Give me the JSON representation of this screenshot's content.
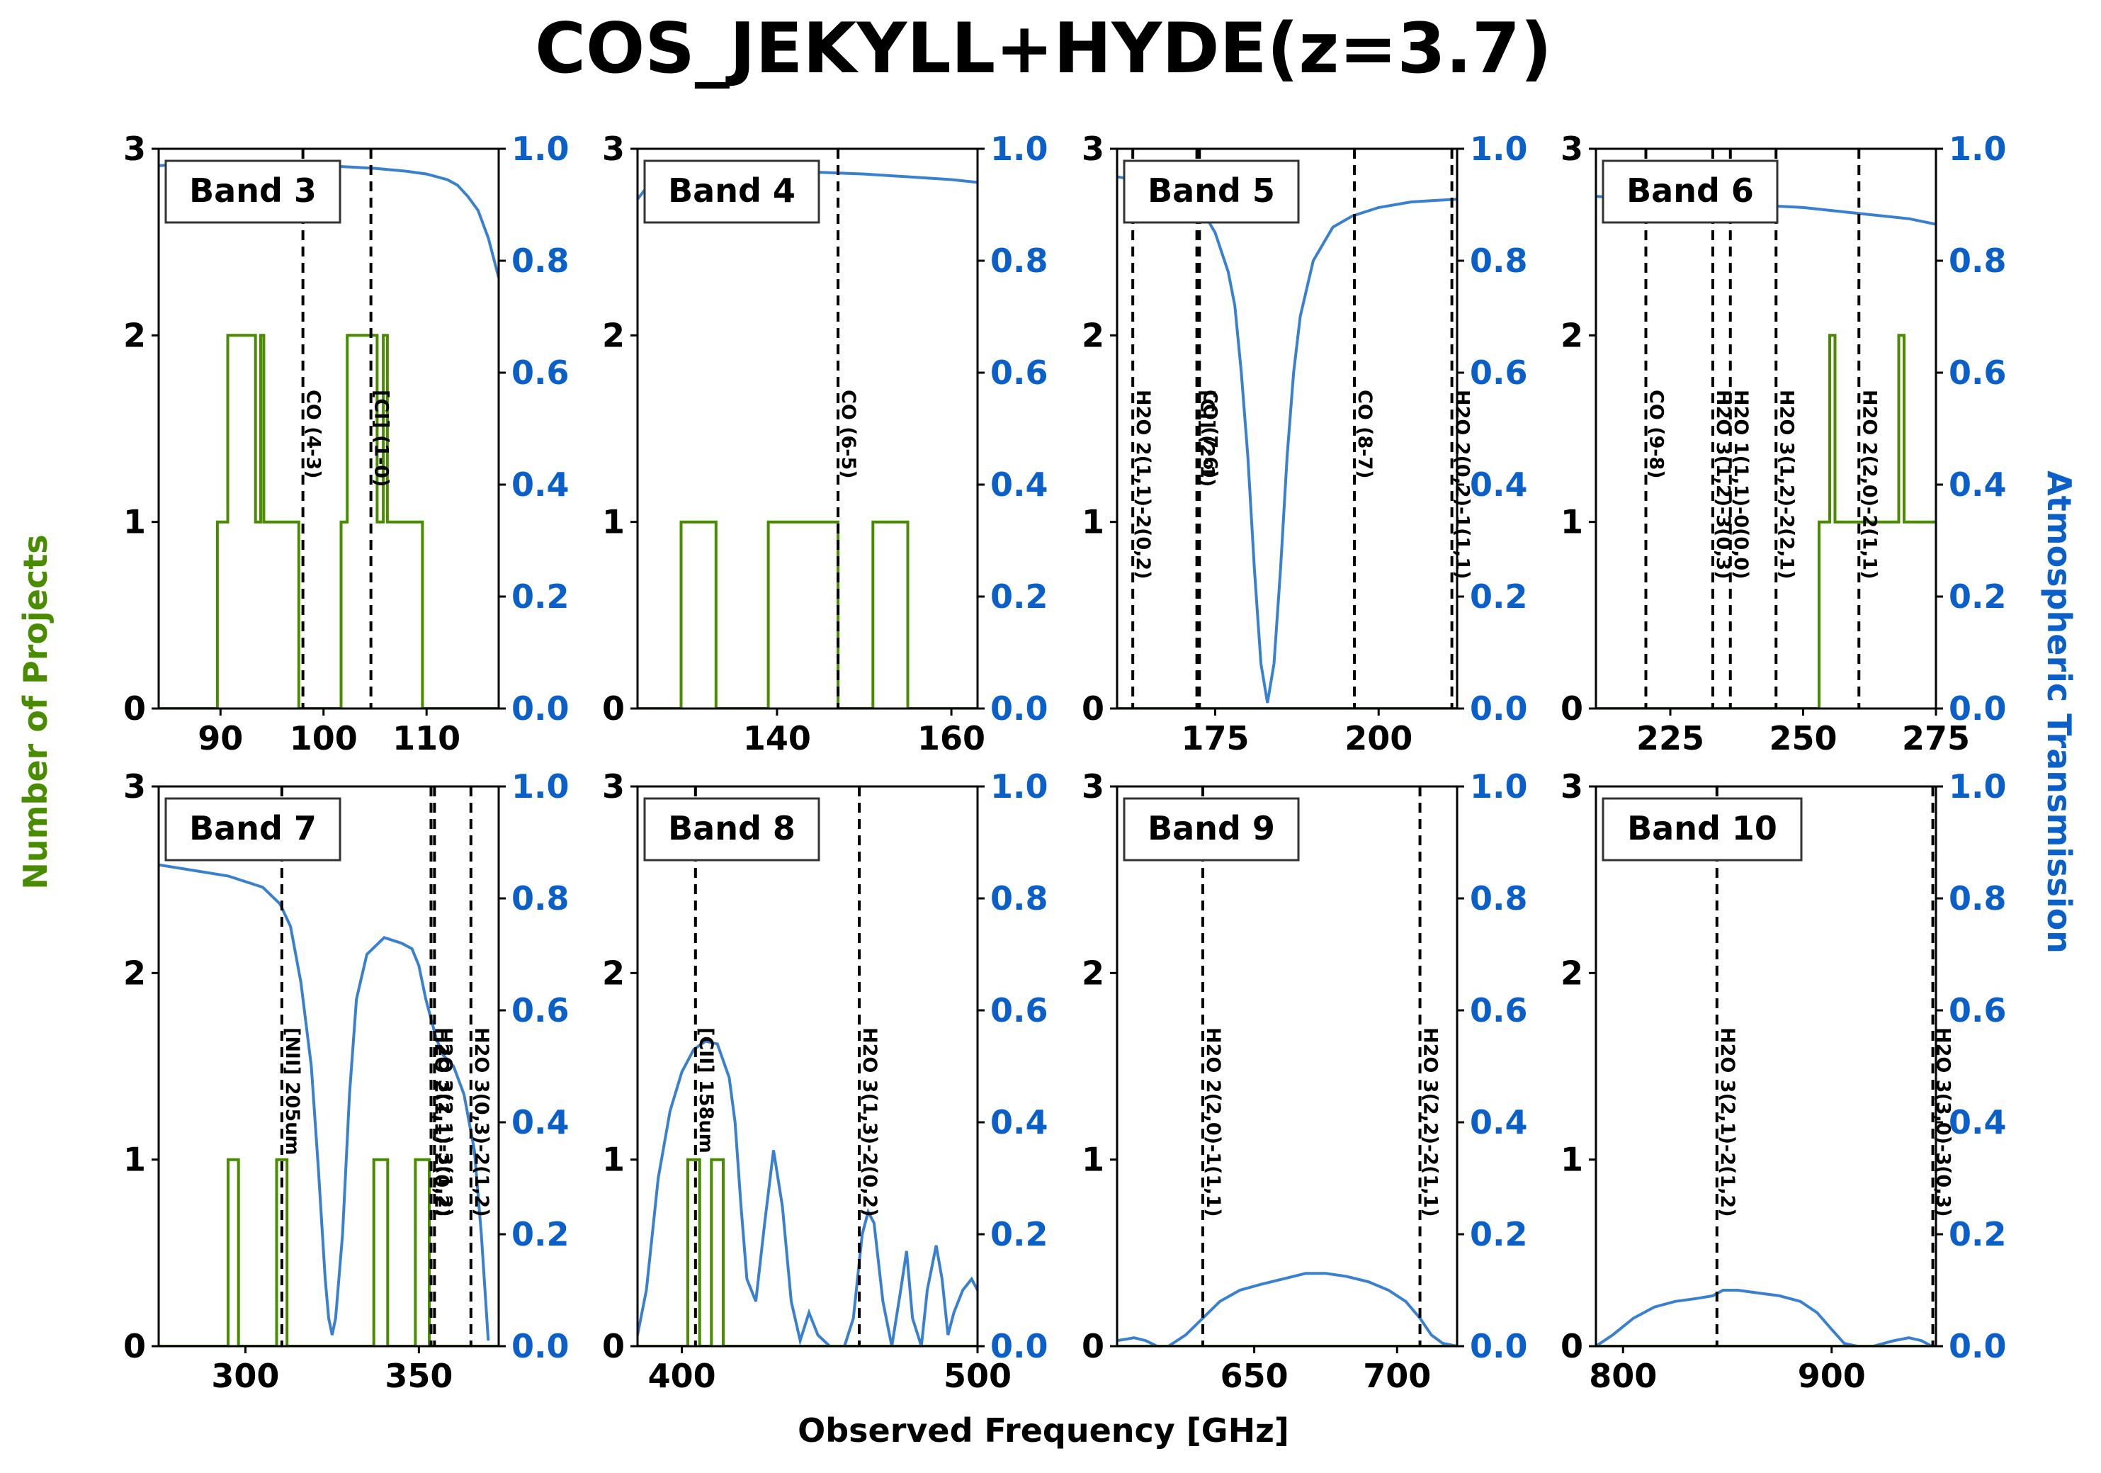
{
  "figure": {
    "title": "COS_JEKYLL+HYDE(z=3.7)",
    "xlabel": "Observed Frequency [GHz]",
    "ylabel_left": "Number of Projects",
    "ylabel_right": "Atmospheric Transmission",
    "colors": {
      "projects": "#4a8c00",
      "transmission": "#3a80d0",
      "right_axis_text": "#0a5fc8",
      "lines": "#000000"
    }
  },
  "chart_data": [
    {
      "type": "line",
      "band": "Band 3",
      "xlim": [
        84,
        117
      ],
      "xticks": [
        90,
        100,
        110
      ],
      "ylim_left": [
        0,
        3
      ],
      "yticks_left": [
        0,
        1,
        2,
        3
      ],
      "ylim_right": [
        0,
        1.0
      ],
      "yticks_right": [
        "0.0",
        "0.2",
        "0.4",
        "0.6",
        "0.8",
        "1.0"
      ],
      "projects": {
        "x": [
          84,
          89.7,
          89.7,
          90.7,
          90.7,
          93.4,
          93.4,
          93.9,
          93.9,
          94.2,
          94.2,
          94.6,
          94.6,
          97.6,
          97.6,
          101.7,
          101.7,
          102.3,
          102.3,
          105.2,
          105.2,
          105.8,
          105.8,
          106.2,
          106.2,
          109.6,
          109.6,
          117
        ],
        "y": [
          0,
          0,
          1,
          1,
          2,
          2,
          1,
          1,
          2,
          2,
          1,
          1,
          1,
          1,
          0,
          0,
          1,
          1,
          2,
          2,
          1,
          1,
          2,
          2,
          1,
          1,
          0,
          0
        ]
      },
      "transmission": {
        "x": [
          84,
          90,
          95,
          100,
          105,
          108,
          110,
          112,
          113,
          114,
          115,
          116,
          117
        ],
        "y": [
          0.97,
          0.975,
          0.975,
          0.97,
          0.965,
          0.96,
          0.955,
          0.945,
          0.935,
          0.915,
          0.89,
          0.84,
          0.77
        ]
      },
      "lines": [
        {
          "x": 98.0,
          "label": "CO (4-3)"
        },
        {
          "x": 104.6,
          "label": "[CI] (1-0)"
        }
      ]
    },
    {
      "type": "line",
      "band": "Band 4",
      "xlim": [
        124,
        163
      ],
      "xticks": [
        140,
        160
      ],
      "ylim_left": [
        0,
        3
      ],
      "yticks_left": [
        0,
        1,
        2,
        3
      ],
      "ylim_right": [
        0,
        1.0
      ],
      "yticks_right": [
        "0.0",
        "0.2",
        "0.4",
        "0.6",
        "0.8",
        "1.0"
      ],
      "projects": {
        "x": [
          124,
          129,
          129,
          133,
          133,
          139,
          139,
          147,
          147,
          151,
          151,
          155,
          155,
          163
        ],
        "y": [
          0,
          0,
          1,
          1,
          0,
          0,
          1,
          1,
          0,
          0,
          1,
          1,
          0,
          0
        ]
      },
      "transmission": {
        "x": [
          124,
          125,
          127,
          130,
          135,
          140,
          145,
          150,
          155,
          160,
          163
        ],
        "y": [
          0.91,
          0.93,
          0.945,
          0.95,
          0.955,
          0.958,
          0.958,
          0.955,
          0.95,
          0.945,
          0.94
        ]
      },
      "lines": [
        {
          "x": 147.0,
          "label": "CO (6-5)"
        }
      ]
    },
    {
      "type": "line",
      "band": "Band 5",
      "xlim": [
        160,
        212
      ],
      "xticks": [
        175,
        200
      ],
      "ylim_left": [
        0,
        3
      ],
      "yticks_left": [
        0,
        1,
        2,
        3
      ],
      "ylim_right": [
        0,
        1.0
      ],
      "yticks_right": [
        "0.0",
        "0.2",
        "0.4",
        "0.6",
        "0.8",
        "1.0"
      ],
      "projects": {
        "x": [
          160,
          212
        ],
        "y": [
          0,
          0
        ]
      },
      "transmission": {
        "x": [
          160,
          165,
          170,
          173,
          175,
          177,
          178,
          179,
          180,
          181,
          182,
          183,
          184,
          185,
          186,
          187,
          188,
          190,
          193,
          196,
          200,
          205,
          212
        ],
        "y": [
          0.95,
          0.94,
          0.92,
          0.89,
          0.85,
          0.78,
          0.72,
          0.6,
          0.45,
          0.25,
          0.08,
          0.01,
          0.08,
          0.25,
          0.45,
          0.6,
          0.7,
          0.8,
          0.86,
          0.88,
          0.895,
          0.905,
          0.91
        ]
      },
      "lines": [
        {
          "x": 162.4,
          "label": "H2O 2(1,1)-2(0,2)"
        },
        {
          "x": 172.2,
          "label": "[CI] (2-1)"
        },
        {
          "x": 172.6,
          "label": "CO (7-6)"
        },
        {
          "x": 196.3,
          "label": "CO (8-7)"
        },
        {
          "x": 211.2,
          "label": "H2O 2(0,2)-1(1,1)"
        }
      ]
    },
    {
      "type": "line",
      "band": "Band 6",
      "xlim": [
        211,
        275
      ],
      "xticks": [
        225,
        250,
        275
      ],
      "ylim_left": [
        0,
        3
      ],
      "yticks_left": [
        0,
        1,
        2,
        3
      ],
      "ylim_right": [
        0,
        1.0
      ],
      "yticks_right": [
        "0.0",
        "0.2",
        "0.4",
        "0.6",
        "0.8",
        "1.0"
      ],
      "projects": {
        "x": [
          211,
          253,
          253,
          255,
          255,
          256,
          256,
          267,
          267,
          268,
          268,
          269,
          269,
          275
        ],
        "y": [
          0,
          0,
          1,
          1,
          2,
          2,
          1,
          1,
          1,
          1,
          2,
          2,
          1,
          1
        ]
      },
      "transmission": {
        "x": [
          211,
          220,
          230,
          235,
          240,
          250,
          260,
          270,
          275
        ],
        "y": [
          0.915,
          0.91,
          0.905,
          0.9,
          0.9,
          0.895,
          0.885,
          0.875,
          0.865
        ]
      },
      "lines": [
        {
          "x": 220.4,
          "label": "CO (9-8)"
        },
        {
          "x": 233.0,
          "label": "H2O 3(1,2)-3(0,3)"
        },
        {
          "x": 236.3,
          "label": "H2O 1(1,1)-0(0,0)"
        },
        {
          "x": 244.9,
          "label": "H2O 3(1,2)-2(2,1)"
        },
        {
          "x": 260.5,
          "label": "H2O 2(2,0)-2(1,1)"
        }
      ]
    },
    {
      "type": "line",
      "band": "Band 7",
      "xlim": [
        275,
        373
      ],
      "xticks": [
        300,
        350
      ],
      "ylim_left": [
        0,
        3
      ],
      "yticks_left": [
        0,
        1,
        2,
        3
      ],
      "ylim_right": [
        0,
        1.0
      ],
      "yticks_right": [
        "0.0",
        "0.2",
        "0.4",
        "0.6",
        "0.8",
        "1.0"
      ],
      "projects": {
        "x": [
          275,
          295,
          295,
          298,
          298,
          309,
          309,
          312,
          312,
          337,
          337,
          341,
          341,
          349,
          349,
          353,
          353,
          373
        ],
        "y": [
          0,
          0,
          1,
          1,
          0,
          0,
          1,
          1,
          0,
          0,
          1,
          1,
          0,
          0,
          1,
          1,
          0,
          0
        ]
      },
      "transmission": {
        "x": [
          275,
          285,
          295,
          305,
          310,
          313,
          316,
          319,
          321,
          323,
          324,
          325,
          326,
          328,
          330,
          332,
          335,
          340,
          345,
          348,
          350,
          352,
          355,
          357,
          360,
          363,
          366,
          368,
          370
        ],
        "y": [
          0.86,
          0.85,
          0.84,
          0.82,
          0.79,
          0.75,
          0.65,
          0.5,
          0.32,
          0.12,
          0.05,
          0.02,
          0.05,
          0.2,
          0.45,
          0.62,
          0.7,
          0.73,
          0.72,
          0.71,
          0.68,
          0.62,
          0.55,
          0.52,
          0.5,
          0.45,
          0.35,
          0.2,
          0.01
        ]
      },
      "lines": [
        {
          "x": 310.5,
          "label": "[NII] 205um"
        },
        {
          "x": 353.5,
          "label": "H2O 2(1,1)-2(0,2)"
        },
        {
          "x": 354.5,
          "label": "H2O 3(2,1)-3(1,2)"
        },
        {
          "x": 365.0,
          "label": "H2O 3(0,3)-2(1,2)"
        }
      ]
    },
    {
      "type": "line",
      "band": "Band 8",
      "xlim": [
        385,
        500
      ],
      "xticks": [
        400,
        500
      ],
      "ylim_left": [
        0,
        3
      ],
      "yticks_left": [
        0,
        1,
        2,
        3
      ],
      "ylim_right": [
        0,
        1.0
      ],
      "yticks_right": [
        "0.0",
        "0.2",
        "0.4",
        "0.6",
        "0.8",
        "1.0"
      ],
      "projects": {
        "x": [
          385,
          402,
          402,
          406,
          406,
          410,
          410,
          414,
          414,
          500
        ],
        "y": [
          0,
          0,
          1,
          1,
          0,
          0,
          1,
          1,
          0,
          0
        ]
      },
      "transmission": {
        "x": [
          385,
          388,
          392,
          396,
          400,
          404,
          408,
          412,
          416,
          418,
          420,
          422,
          425,
          428,
          431,
          434,
          437,
          440,
          443,
          446,
          450,
          455,
          458,
          461,
          463,
          465,
          468,
          471,
          474,
          476,
          478,
          481,
          483,
          486,
          488,
          490,
          492,
          495,
          498,
          500
        ],
        "y": [
          0.02,
          0.1,
          0.3,
          0.42,
          0.49,
          0.53,
          0.545,
          0.54,
          0.48,
          0.4,
          0.25,
          0.12,
          0.08,
          0.22,
          0.35,
          0.25,
          0.08,
          0.01,
          0.06,
          0.02,
          0.0,
          0.0,
          0.05,
          0.2,
          0.24,
          0.22,
          0.08,
          0.0,
          0.1,
          0.17,
          0.05,
          0.0,
          0.1,
          0.18,
          0.12,
          0.02,
          0.06,
          0.1,
          0.12,
          0.1
        ]
      },
      "lines": [
        {
          "x": 404.6,
          "label": "[CII] 158um"
        },
        {
          "x": 460.0,
          "label": "H2O 3(1,3)-2(0,2)"
        }
      ]
    },
    {
      "type": "line",
      "band": "Band 9",
      "xlim": [
        602,
        721
      ],
      "xticks": [
        650,
        700
      ],
      "ylim_left": [
        0,
        3
      ],
      "yticks_left": [
        0,
        1,
        2,
        3
      ],
      "ylim_right": [
        0,
        1.0
      ],
      "yticks_right": [
        "0.0",
        "0.2",
        "0.4",
        "0.6",
        "0.8",
        "1.0"
      ],
      "projects": {
        "x": [
          602,
          721
        ],
        "y": [
          0,
          0
        ]
      },
      "transmission": {
        "x": [
          602,
          608,
          612,
          616,
          620,
          626,
          632,
          638,
          645,
          652,
          660,
          668,
          675,
          682,
          690,
          697,
          703,
          708,
          712,
          716,
          721
        ],
        "y": [
          0.01,
          0.015,
          0.01,
          0.0,
          0.0,
          0.02,
          0.05,
          0.08,
          0.1,
          0.11,
          0.12,
          0.13,
          0.13,
          0.125,
          0.115,
          0.1,
          0.08,
          0.05,
          0.02,
          0.005,
          0.0
        ]
      },
      "lines": [
        {
          "x": 632.0,
          "label": "H2O 2(2,0)-1(1,1)"
        },
        {
          "x": 708.0,
          "label": "H2O 3(2,2)-2(1,1)"
        }
      ]
    },
    {
      "type": "line",
      "band": "Band 10",
      "xlim": [
        787,
        950
      ],
      "xticks": [
        800,
        900
      ],
      "ylim_left": [
        0,
        3
      ],
      "yticks_left": [
        0,
        1,
        2,
        3
      ],
      "ylim_right": [
        0,
        1.0
      ],
      "yticks_right": [
        "0.0",
        "0.2",
        "0.4",
        "0.6",
        "0.8",
        "1.0"
      ],
      "projects": {
        "x": [
          787,
          950
        ],
        "y": [
          0,
          0
        ]
      },
      "transmission": {
        "x": [
          787,
          795,
          805,
          815,
          825,
          835,
          843,
          848,
          855,
          865,
          875,
          885,
          893,
          900,
          906,
          912,
          920,
          930,
          937,
          943,
          948,
          950
        ],
        "y": [
          0.0,
          0.02,
          0.05,
          0.07,
          0.08,
          0.085,
          0.09,
          0.1,
          0.1,
          0.095,
          0.09,
          0.08,
          0.06,
          0.03,
          0.005,
          0.0,
          0.0,
          0.01,
          0.015,
          0.01,
          0.0,
          0.0
        ]
      },
      "lines": [
        {
          "x": 845.0,
          "label": "H2O 3(2,1)-2(1,2)"
        },
        {
          "x": 948.5,
          "label": "H2O 3(3,0)-3(0,3)"
        }
      ]
    }
  ]
}
